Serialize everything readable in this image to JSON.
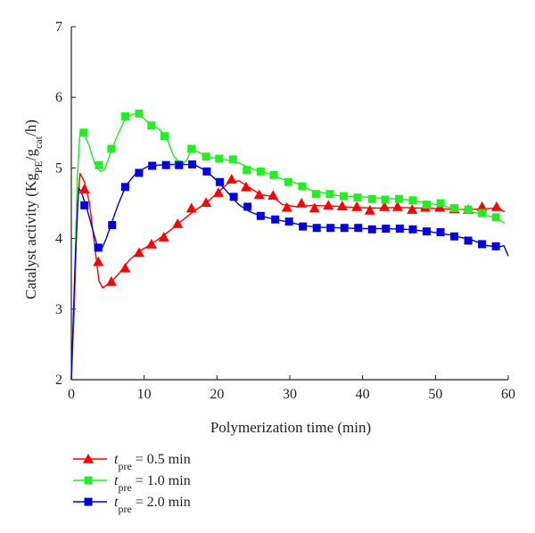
{
  "chart_data": {
    "type": "line",
    "xlabel": "Polymerization time (min)",
    "ylabel": {
      "prefix": "Catalyst activity (Kg",
      "sub1": "PE",
      "mid": "/g",
      "sub2": "cat",
      "suffix": "/h)"
    },
    "xlim": [
      0,
      60
    ],
    "ylim": [
      2,
      7
    ],
    "x_ticks": [
      0,
      10,
      20,
      30,
      40,
      50,
      60
    ],
    "y_ticks": [
      2,
      3,
      4,
      5,
      6,
      7
    ],
    "grid": false,
    "legend_position": "bottom-left, below plot",
    "series": [
      {
        "name": "t_pre = 0.5 min",
        "legend": {
          "var": "t",
          "sub": "pre",
          "rest": " = 0.5 min"
        },
        "color": "#ff0000",
        "marker": "triangle",
        "curve": [
          [
            0,
            2.0
          ],
          [
            0.4,
            3.0
          ],
          [
            0.8,
            4.4
          ],
          [
            1.2,
            4.92
          ],
          [
            1.8,
            4.8
          ],
          [
            2.5,
            4.5
          ],
          [
            3.2,
            3.9
          ],
          [
            3.8,
            3.4
          ],
          [
            4.3,
            3.3
          ],
          [
            5.4,
            3.38
          ],
          [
            6.5,
            3.5
          ],
          [
            8,
            3.7
          ],
          [
            9.5,
            3.83
          ],
          [
            11,
            3.92
          ],
          [
            12.5,
            4.03
          ],
          [
            14,
            4.15
          ],
          [
            15.5,
            4.28
          ],
          [
            17,
            4.4
          ],
          [
            18.5,
            4.5
          ],
          [
            20,
            4.64
          ],
          [
            21.5,
            4.78
          ],
          [
            23,
            4.82
          ],
          [
            24.5,
            4.72
          ],
          [
            26,
            4.62
          ],
          [
            27.5,
            4.6
          ],
          [
            29,
            4.48
          ],
          [
            31,
            4.45
          ],
          [
            33,
            4.47
          ],
          [
            36,
            4.46
          ],
          [
            39,
            4.44
          ],
          [
            42,
            4.43
          ],
          [
            45,
            4.44
          ],
          [
            48,
            4.43
          ],
          [
            51,
            4.42
          ],
          [
            54,
            4.41
          ],
          [
            57,
            4.42
          ],
          [
            58.5,
            4.44
          ],
          [
            59.5,
            4.38
          ]
        ],
        "markers": [
          [
            1.8,
            4.7
          ],
          [
            3.7,
            3.67
          ],
          [
            5.5,
            3.39
          ],
          [
            7.4,
            3.58
          ],
          [
            9.3,
            3.8
          ],
          [
            11,
            3.92
          ],
          [
            12.7,
            4.02
          ],
          [
            14.6,
            4.21
          ],
          [
            16.5,
            4.43
          ],
          [
            18.5,
            4.51
          ],
          [
            20.2,
            4.65
          ],
          [
            22,
            4.84
          ],
          [
            24,
            4.73
          ],
          [
            25.8,
            4.62
          ],
          [
            27.7,
            4.61
          ],
          [
            29.6,
            4.44
          ],
          [
            31.6,
            4.5
          ],
          [
            33.4,
            4.43
          ],
          [
            35.3,
            4.47
          ],
          [
            37.2,
            4.46
          ],
          [
            39.2,
            4.45
          ],
          [
            41,
            4.4
          ],
          [
            43,
            4.45
          ],
          [
            44.8,
            4.45
          ],
          [
            46.8,
            4.41
          ],
          [
            48.6,
            4.44
          ],
          [
            50.6,
            4.44
          ],
          [
            52.6,
            4.42
          ],
          [
            54.5,
            4.41
          ],
          [
            56.4,
            4.45
          ],
          [
            58.4,
            4.45
          ]
        ]
      },
      {
        "name": "t_pre = 1.0 min",
        "legend": {
          "var": "t",
          "sub": "pre",
          "rest": " = 1.0 min"
        },
        "color": "#22ee22",
        "marker": "square",
        "curve": [
          [
            0,
            2.0
          ],
          [
            0.4,
            3.2
          ],
          [
            0.8,
            4.8
          ],
          [
            1.2,
            5.52
          ],
          [
            1.8,
            5.48
          ],
          [
            2.5,
            5.3
          ],
          [
            3.2,
            5.06
          ],
          [
            4,
            4.95
          ],
          [
            4.6,
            4.98
          ],
          [
            5.5,
            5.25
          ],
          [
            6.5,
            5.5
          ],
          [
            7.5,
            5.72
          ],
          [
            9,
            5.78
          ],
          [
            10.5,
            5.65
          ],
          [
            12,
            5.55
          ],
          [
            13,
            5.45
          ],
          [
            14,
            5.18
          ],
          [
            15,
            5.05
          ],
          [
            15.8,
            5.1
          ],
          [
            16.5,
            5.27
          ],
          [
            17.5,
            5.22
          ],
          [
            19,
            5.15
          ],
          [
            21,
            5.12
          ],
          [
            23,
            5.07
          ],
          [
            25,
            4.98
          ],
          [
            27,
            4.92
          ],
          [
            29,
            4.84
          ],
          [
            31,
            4.78
          ],
          [
            33,
            4.68
          ],
          [
            35,
            4.64
          ],
          [
            37,
            4.6
          ],
          [
            40,
            4.59
          ],
          [
            43,
            4.57
          ],
          [
            46,
            4.55
          ],
          [
            49,
            4.5
          ],
          [
            52,
            4.44
          ],
          [
            55,
            4.38
          ],
          [
            58,
            4.3
          ],
          [
            59.5,
            4.22
          ]
        ],
        "markers": [
          [
            1.7,
            5.5
          ],
          [
            3.8,
            5.04
          ],
          [
            5.5,
            5.27
          ],
          [
            7.4,
            5.73
          ],
          [
            9.3,
            5.77
          ],
          [
            11,
            5.6
          ],
          [
            12.8,
            5.45
          ],
          [
            14.7,
            5.05
          ],
          [
            16.5,
            5.27
          ],
          [
            18.5,
            5.16
          ],
          [
            20.3,
            5.13
          ],
          [
            22.2,
            5.12
          ],
          [
            24.1,
            4.97
          ],
          [
            26,
            4.95
          ],
          [
            27.8,
            4.9
          ],
          [
            29.8,
            4.8
          ],
          [
            31.7,
            4.74
          ],
          [
            33.6,
            4.63
          ],
          [
            35.5,
            4.63
          ],
          [
            37.4,
            4.6
          ],
          [
            39.3,
            4.58
          ],
          [
            41.3,
            4.56
          ],
          [
            43.1,
            4.55
          ],
          [
            45,
            4.56
          ],
          [
            46.9,
            4.54
          ],
          [
            48.8,
            4.48
          ],
          [
            50.7,
            4.5
          ],
          [
            52.6,
            4.43
          ],
          [
            54.5,
            4.41
          ],
          [
            56.4,
            4.36
          ],
          [
            58.3,
            4.3
          ]
        ]
      },
      {
        "name": "t_pre = 2.0 min",
        "legend": {
          "var": "t",
          "sub": "pre",
          "rest": " = 2.0 min"
        },
        "color": "#0000dd",
        "marker": "square",
        "curve": [
          [
            0,
            2.0
          ],
          [
            0.5,
            3.6
          ],
          [
            1,
            4.72
          ],
          [
            1.5,
            4.62
          ],
          [
            2.2,
            4.4
          ],
          [
            3,
            4.1
          ],
          [
            3.6,
            3.88
          ],
          [
            4.1,
            3.84
          ],
          [
            4.8,
            4.0
          ],
          [
            5.6,
            4.24
          ],
          [
            6.5,
            4.5
          ],
          [
            7.5,
            4.75
          ],
          [
            9,
            4.94
          ],
          [
            10.5,
            5.02
          ],
          [
            12,
            5.04
          ],
          [
            14,
            5.05
          ],
          [
            15.5,
            5.05
          ],
          [
            17,
            5.04
          ],
          [
            18.5,
            4.96
          ],
          [
            20,
            4.82
          ],
          [
            21.5,
            4.65
          ],
          [
            23,
            4.48
          ],
          [
            24.5,
            4.38
          ],
          [
            26,
            4.32
          ],
          [
            28,
            4.27
          ],
          [
            30,
            4.23
          ],
          [
            32,
            4.18
          ],
          [
            34,
            4.16
          ],
          [
            37,
            4.15
          ],
          [
            40,
            4.14
          ],
          [
            43,
            4.14
          ],
          [
            46,
            4.13
          ],
          [
            49,
            4.1
          ],
          [
            52,
            4.05
          ],
          [
            55,
            3.98
          ],
          [
            57,
            3.9
          ],
          [
            58.8,
            3.88
          ],
          [
            59.4,
            3.9
          ],
          [
            60,
            3.75
          ]
        ],
        "markers": [
          [
            1.8,
            4.47
          ],
          [
            3.7,
            3.87
          ],
          [
            5.6,
            4.19
          ],
          [
            7.4,
            4.73
          ],
          [
            9.3,
            4.93
          ],
          [
            11.1,
            5.03
          ],
          [
            13,
            5.04
          ],
          [
            14.8,
            5.04
          ],
          [
            16.6,
            5.05
          ],
          [
            18.6,
            4.95
          ],
          [
            20.4,
            4.8
          ],
          [
            22.3,
            4.59
          ],
          [
            24.2,
            4.45
          ],
          [
            26,
            4.32
          ],
          [
            28,
            4.27
          ],
          [
            29.9,
            4.24
          ],
          [
            31.8,
            4.17
          ],
          [
            33.7,
            4.15
          ],
          [
            35.6,
            4.15
          ],
          [
            37.5,
            4.15
          ],
          [
            39.4,
            4.15
          ],
          [
            41.3,
            4.13
          ],
          [
            43.2,
            4.14
          ],
          [
            45.1,
            4.14
          ],
          [
            46.9,
            4.13
          ],
          [
            48.8,
            4.1
          ],
          [
            50.7,
            4.09
          ],
          [
            52.6,
            4.03
          ],
          [
            54.5,
            3.97
          ],
          [
            56.4,
            3.92
          ],
          [
            58.3,
            3.89
          ]
        ]
      }
    ]
  }
}
